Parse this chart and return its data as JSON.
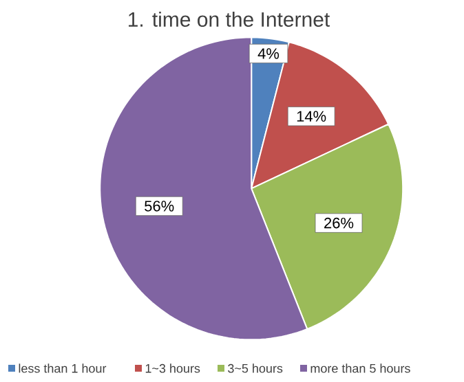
{
  "chart_data": {
    "type": "pie",
    "title": "1. time on the Internet",
    "categories": [
      "less than 1 hour",
      "1~3 hours",
      "3~5 hours",
      "more than 5 hours"
    ],
    "values": [
      4,
      14,
      26,
      56
    ],
    "value_labels": [
      "4%",
      "14%",
      "26%",
      "56%"
    ],
    "colors": [
      "#4f81bd",
      "#c0504d",
      "#9bbb59",
      "#8064a2"
    ],
    "legend": "bottom"
  }
}
